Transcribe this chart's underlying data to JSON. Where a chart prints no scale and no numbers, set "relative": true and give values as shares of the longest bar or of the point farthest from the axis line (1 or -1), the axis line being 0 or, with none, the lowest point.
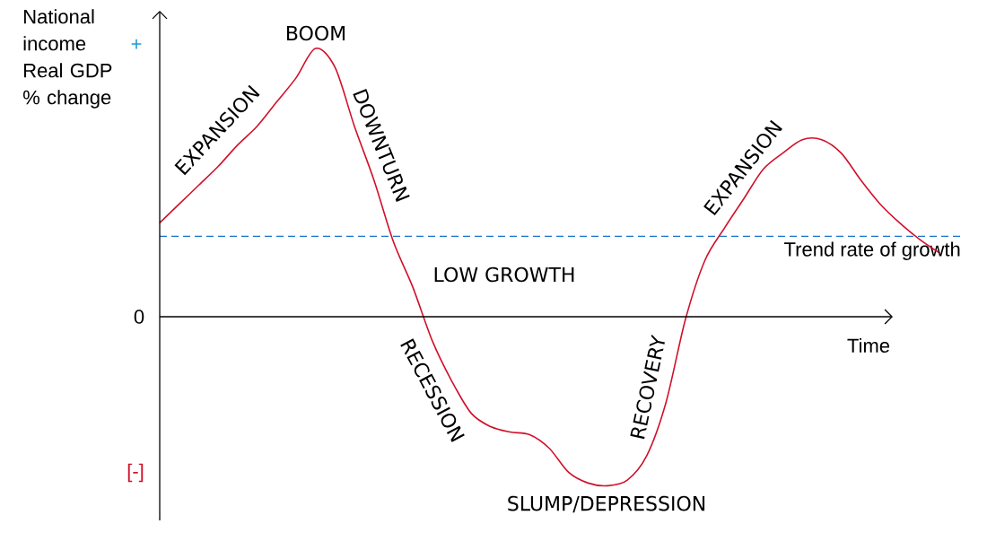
{
  "chart_data": {
    "type": "line",
    "relative": true,
    "ylabel": "National income Real GDP % change",
    "xlabel": "Time",
    "categories": [
      null,
      null,
      null,
      null,
      null,
      null,
      null,
      null,
      null,
      null,
      null,
      null,
      null,
      null,
      null,
      null,
      null,
      null,
      null,
      null,
      null,
      null,
      null,
      null,
      null,
      null,
      null,
      null,
      null,
      null,
      null,
      null,
      null,
      null,
      null,
      null,
      null,
      null,
      null,
      null,
      null
    ],
    "series": [
      {
        "color": "#d0102a",
        "values": [
          0.35,
          0.42,
          0.49,
          0.56,
          0.64,
          0.71,
          0.8,
          0.89,
          1.0,
          0.93,
          0.71,
          0.51,
          0.28,
          0.11,
          -0.09,
          -0.24,
          -0.36,
          -0.41,
          -0.43,
          -0.44,
          -0.49,
          -0.58,
          -0.62,
          -0.63,
          -0.61,
          -0.52,
          -0.32,
          -0.01,
          0.21,
          0.33,
          0.44,
          0.55,
          0.61,
          0.66,
          0.66,
          0.61,
          0.51,
          0.42,
          0.35,
          0.29,
          0.24
        ]
      }
    ],
    "ref_lines": [
      {
        "axis": "y",
        "value": 0.3,
        "label": "Trend rate of growth",
        "color": "#1a73c8",
        "line_style": "dashed"
      }
    ],
    "annotations": [
      "EXPANSION",
      "BOOM",
      "DOWNTURN",
      "LOW GROWTH",
      "RECESSION",
      "SLUMP/DEPRESSION",
      "RECOVERY",
      "EXPANSION",
      "+",
      "0",
      "[-]"
    ]
  }
}
